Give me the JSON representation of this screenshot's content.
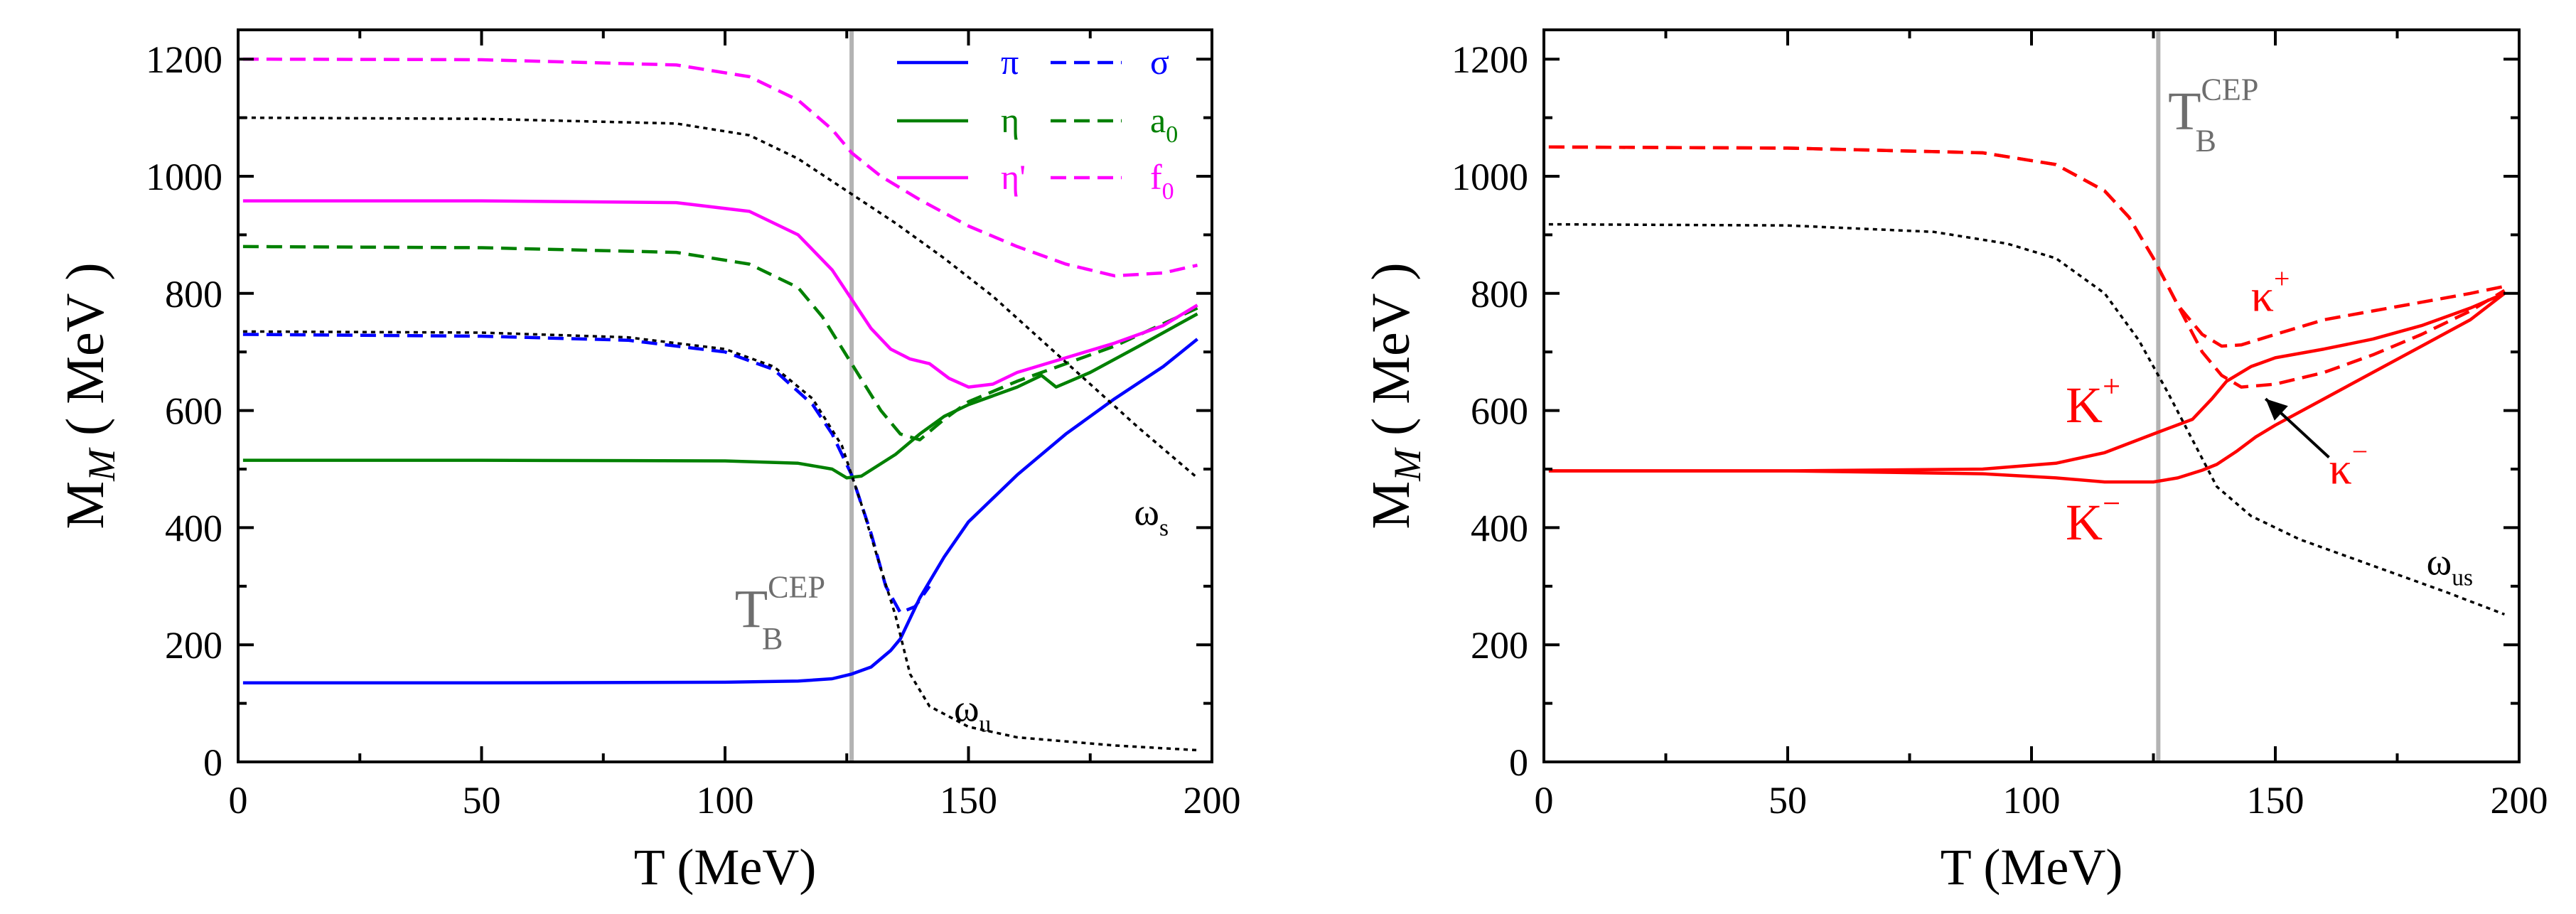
{
  "figure": {
    "panels": [
      "left",
      "right"
    ]
  },
  "chart_data": [
    {
      "id": "left",
      "type": "line",
      "title": "",
      "xlabel": "T (MeV)",
      "ylabel_main": "M",
      "ylabel_sub": "M",
      "ylabel_rest": " ( MeV )",
      "xlim": [
        0,
        200
      ],
      "ylim": [
        0,
        1250
      ],
      "xticks": [
        0,
        50,
        100,
        150,
        200
      ],
      "yticks": [
        0,
        200,
        400,
        600,
        800,
        1000,
        1200
      ],
      "vline": {
        "x": 126,
        "color": "#b3b3b3"
      },
      "legend_position": "top-right",
      "series": [
        {
          "name": "π",
          "color": "#0000ff",
          "dash": "solid",
          "legend": true,
          "points": [
            [
              1,
              135
            ],
            [
              50,
              135
            ],
            [
              100,
              136
            ],
            [
              115,
              138
            ],
            [
              122,
              142
            ],
            [
              126,
              150
            ],
            [
              130,
              162
            ],
            [
              134,
              190
            ],
            [
              136,
              210
            ],
            [
              140,
              280
            ],
            [
              145,
              350
            ],
            [
              150,
              410
            ],
            [
              160,
              490
            ],
            [
              170,
              560
            ],
            [
              180,
              620
            ],
            [
              190,
              675
            ],
            [
              197,
              722
            ]
          ]
        },
        {
          "name": "σ",
          "color": "#0000ff",
          "dash": "dashed",
          "legend": true,
          "points": [
            [
              1,
              730
            ],
            [
              50,
              727
            ],
            [
              80,
              720
            ],
            [
              100,
              700
            ],
            [
              110,
              670
            ],
            [
              118,
              610
            ],
            [
              122,
              560
            ],
            [
              126,
              490
            ],
            [
              130,
              390
            ],
            [
              133,
              300
            ],
            [
              136,
              255
            ],
            [
              139,
              265
            ],
            [
              142,
              300
            ]
          ]
        },
        {
          "name": "η",
          "color": "#008000",
          "dash": "solid",
          "legend": true,
          "points": [
            [
              1,
              515
            ],
            [
              50,
              515
            ],
            [
              100,
              514
            ],
            [
              115,
              510
            ],
            [
              122,
              500
            ],
            [
              125,
              485
            ],
            [
              128,
              488
            ],
            [
              135,
              525
            ],
            [
              140,
              560
            ],
            [
              145,
              590
            ],
            [
              150,
              610
            ],
            [
              160,
              640
            ],
            [
              165,
              660
            ],
            [
              168,
              640
            ],
            [
              175,
              665
            ],
            [
              185,
              710
            ],
            [
              197,
              765
            ]
          ]
        },
        {
          "name": "a0",
          "nameMain": "a",
          "nameSub": "0",
          "color": "#008000",
          "dash": "dashed",
          "legend": true,
          "points": [
            [
              1,
              880
            ],
            [
              50,
              878
            ],
            [
              90,
              870
            ],
            [
              105,
              850
            ],
            [
              115,
              810
            ],
            [
              120,
              760
            ],
            [
              126,
              680
            ],
            [
              132,
              600
            ],
            [
              136,
              560
            ],
            [
              140,
              550
            ],
            [
              145,
              585
            ],
            [
              150,
              615
            ],
            [
              160,
              650
            ],
            [
              170,
              680
            ],
            [
              180,
              710
            ],
            [
              197,
              775
            ]
          ]
        },
        {
          "name": "η'",
          "color": "#ff00ff",
          "dash": "solid",
          "legend": true,
          "points": [
            [
              1,
              958
            ],
            [
              50,
              958
            ],
            [
              90,
              955
            ],
            [
              105,
              940
            ],
            [
              115,
              900
            ],
            [
              122,
              840
            ],
            [
              126,
              790
            ],
            [
              130,
              740
            ],
            [
              134,
              705
            ],
            [
              138,
              688
            ],
            [
              142,
              680
            ],
            [
              146,
              655
            ],
            [
              150,
              640
            ],
            [
              155,
              645
            ],
            [
              160,
              665
            ],
            [
              170,
              690
            ],
            [
              180,
              715
            ],
            [
              190,
              745
            ],
            [
              197,
              780
            ]
          ]
        },
        {
          "name": "f0",
          "nameMain": "f",
          "nameSub": "0",
          "color": "#ff00ff",
          "dash": "dashed",
          "legend": true,
          "points": [
            [
              1,
              1200
            ],
            [
              50,
              1199
            ],
            [
              90,
              1190
            ],
            [
              105,
              1170
            ],
            [
              115,
              1130
            ],
            [
              122,
              1080
            ],
            [
              126,
              1040
            ],
            [
              132,
              1000
            ],
            [
              140,
              960
            ],
            [
              150,
              915
            ],
            [
              160,
              880
            ],
            [
              170,
              850
            ],
            [
              180,
              830
            ],
            [
              190,
              835
            ],
            [
              197,
              848
            ]
          ]
        },
        {
          "name": "ωu",
          "color": "#000000",
          "dash": "dotted",
          "legend": false,
          "points": [
            [
              1,
              735
            ],
            [
              50,
              733
            ],
            [
              80,
              725
            ],
            [
              100,
              705
            ],
            [
              110,
              675
            ],
            [
              118,
              620
            ],
            [
              124,
              540
            ],
            [
              128,
              440
            ],
            [
              132,
              330
            ],
            [
              135,
              250
            ],
            [
              138,
              150
            ],
            [
              142,
              95
            ],
            [
              150,
              60
            ],
            [
              160,
              42
            ],
            [
              180,
              28
            ],
            [
              197,
              20
            ]
          ]
        },
        {
          "name": "ωs",
          "color": "#000000",
          "dash": "dotted",
          "legend": false,
          "points": [
            [
              1,
              1100
            ],
            [
              50,
              1098
            ],
            [
              90,
              1090
            ],
            [
              105,
              1070
            ],
            [
              115,
              1030
            ],
            [
              125,
              975
            ],
            [
              135,
              920
            ],
            [
              145,
              860
            ],
            [
              155,
              795
            ],
            [
              165,
              720
            ],
            [
              175,
              645
            ],
            [
              185,
              570
            ],
            [
              197,
              485
            ]
          ]
        }
      ],
      "annotations": [
        {
          "main": "T",
          "sup": "CEP",
          "sub": "B",
          "color": "#6e6e6e",
          "kind": "tcep",
          "x": 102,
          "y": 230
        },
        {
          "main": "ω",
          "sub": "u",
          "color": "#000000",
          "kind": "omega",
          "x": 147,
          "y": 70
        },
        {
          "main": "ω",
          "sub": "s",
          "color": "#000000",
          "kind": "omega",
          "x": 184,
          "y": 405
        }
      ]
    },
    {
      "id": "right",
      "type": "line",
      "title": "",
      "xlabel": "T (MeV)",
      "ylabel_main": "M",
      "ylabel_sub": "M",
      "ylabel_rest": " ( MeV )",
      "xlim": [
        0,
        200
      ],
      "ylim": [
        0,
        1250
      ],
      "xticks": [
        0,
        50,
        100,
        150,
        200
      ],
      "yticks": [
        0,
        200,
        400,
        600,
        800,
        1000,
        1200
      ],
      "vline": {
        "x": 126,
        "color": "#b3b3b3"
      },
      "series": [
        {
          "name": "K+",
          "color": "#ff0000",
          "dash": "solid",
          "points": [
            [
              1,
              497
            ],
            [
              50,
              497
            ],
            [
              90,
              500
            ],
            [
              105,
              510
            ],
            [
              115,
              528
            ],
            [
              125,
              560
            ],
            [
              133,
              585
            ],
            [
              137,
              620
            ],
            [
              140,
              650
            ],
            [
              145,
              675
            ],
            [
              150,
              690
            ],
            [
              160,
              705
            ],
            [
              170,
              722
            ],
            [
              180,
              745
            ],
            [
              190,
              775
            ],
            [
              197,
              800
            ]
          ]
        },
        {
          "name": "K−",
          "color": "#ff0000",
          "dash": "solid",
          "points": [
            [
              1,
              497
            ],
            [
              50,
              497
            ],
            [
              90,
              492
            ],
            [
              105,
              485
            ],
            [
              115,
              478
            ],
            [
              125,
              478
            ],
            [
              130,
              485
            ],
            [
              135,
              498
            ],
            [
              138,
              508
            ],
            [
              142,
              530
            ],
            [
              146,
              555
            ],
            [
              150,
              575
            ],
            [
              160,
              620
            ],
            [
              170,
              665
            ],
            [
              180,
              710
            ],
            [
              190,
              755
            ],
            [
              197,
              800
            ]
          ]
        },
        {
          "name": "κ+",
          "color": "#ff0000",
          "dash": "dashed",
          "points": [
            [
              1,
              1050
            ],
            [
              50,
              1048
            ],
            [
              90,
              1040
            ],
            [
              105,
              1020
            ],
            [
              115,
              975
            ],
            [
              120,
              930
            ],
            [
              125,
              860
            ],
            [
              130,
              780
            ],
            [
              135,
              730
            ],
            [
              139,
              710
            ],
            [
              143,
              712
            ],
            [
              150,
              730
            ],
            [
              160,
              755
            ],
            [
              170,
              770
            ],
            [
              180,
              785
            ],
            [
              190,
              800
            ],
            [
              197,
              812
            ]
          ]
        },
        {
          "name": "κ−",
          "color": "#ff0000",
          "dash": "dashed",
          "points": [
            [
              1,
              1050
            ],
            [
              50,
              1048
            ],
            [
              90,
              1040
            ],
            [
              105,
              1020
            ],
            [
              115,
              975
            ],
            [
              120,
              930
            ],
            [
              125,
              860
            ],
            [
              130,
              780
            ],
            [
              135,
              700
            ],
            [
              139,
              660
            ],
            [
              143,
              640
            ],
            [
              150,
              645
            ],
            [
              160,
              665
            ],
            [
              170,
              695
            ],
            [
              180,
              730
            ],
            [
              190,
              770
            ],
            [
              197,
              805
            ]
          ]
        },
        {
          "name": "ωus",
          "color": "#000000",
          "dash": "dotted",
          "points": [
            [
              1,
              918
            ],
            [
              50,
              916
            ],
            [
              80,
              905
            ],
            [
              95,
              885
            ],
            [
              105,
              860
            ],
            [
              115,
              800
            ],
            [
              122,
              720
            ],
            [
              128,
              630
            ],
            [
              133,
              550
            ],
            [
              138,
              470
            ],
            [
              145,
              420
            ],
            [
              155,
              380
            ],
            [
              165,
              350
            ],
            [
              175,
              320
            ],
            [
              185,
              290
            ],
            [
              197,
              252
            ]
          ]
        }
      ],
      "annotations": [
        {
          "main": "T",
          "sup": "CEP",
          "sub": "B",
          "color": "#6e6e6e",
          "kind": "tcep",
          "x": 128,
          "y": 1080
        },
        {
          "main": "K",
          "sup": "+",
          "color": "#ff0000",
          "kind": "meson",
          "x": 107,
          "y": 580
        },
        {
          "main": "K",
          "sup": "−",
          "color": "#ff0000",
          "kind": "meson",
          "x": 107,
          "y": 380
        },
        {
          "main": "κ",
          "sup": "+",
          "color": "#ff0000",
          "kind": "kappa",
          "x": 145,
          "y": 770
        },
        {
          "main": "κ",
          "sup": "−",
          "color": "#ff0000",
          "kind": "kappa",
          "x": 161,
          "y": 475
        },
        {
          "main": "ω",
          "sub": "us",
          "color": "#000000",
          "kind": "omega",
          "x": 181,
          "y": 320
        }
      ],
      "arrow": {
        "from": [
          161,
          520
        ],
        "to": [
          148,
          620
        ]
      }
    }
  ]
}
